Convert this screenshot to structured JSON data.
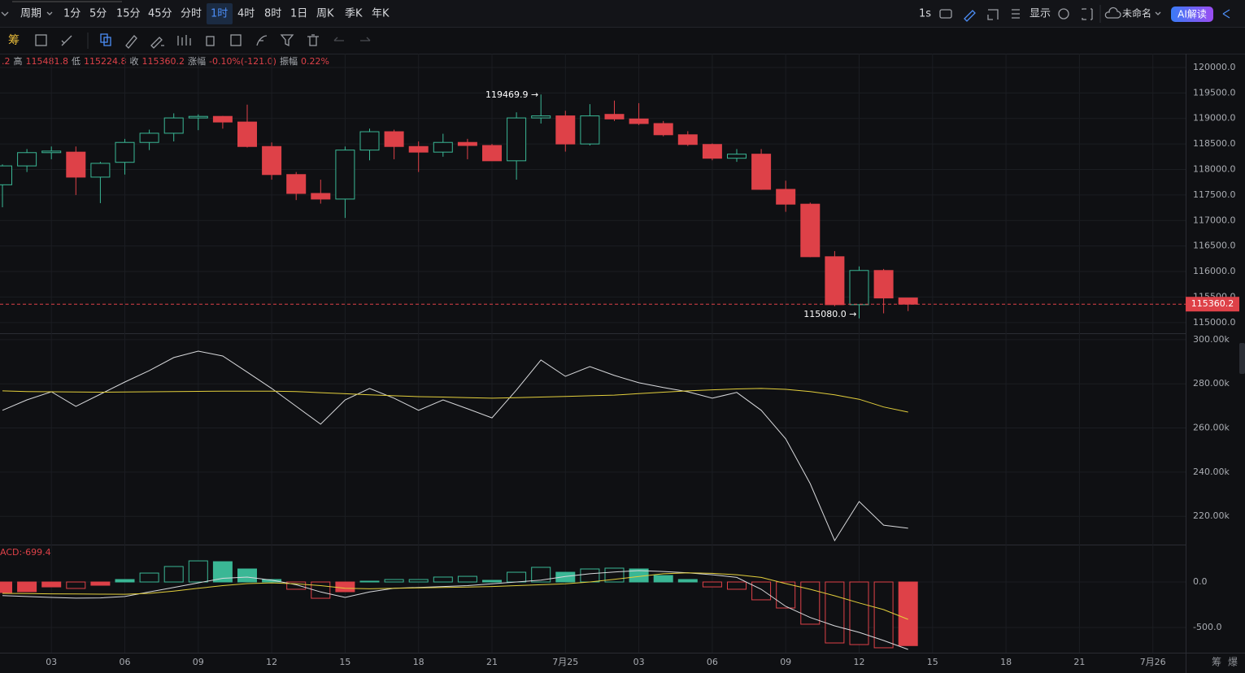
{
  "toolbar": {
    "period_menu": "周期",
    "periods": [
      "1分",
      "5分",
      "15分",
      "45分",
      "分时",
      "1时",
      "4时",
      "8时",
      "1日",
      "周K",
      "季K",
      "年K"
    ],
    "active_period": 5,
    "interval": "1s",
    "display": "显示",
    "layout_name": "未命名",
    "ai": "AI解读",
    "chip_tool": "筹"
  },
  "info_bar": {
    "open_fragment": ".2",
    "high_label": "高",
    "low_label": "低",
    "close_label": "收",
    "change_label": "涨幅",
    "change": "-0.10%(-121.0)",
    "amplitude_label": "振幅",
    "amplitude": "0.22%"
  },
  "footer": [
    "筹",
    "爆"
  ],
  "chart_data": [
    {
      "type": "candlestick",
      "categories": [
        null,
        null,
        "03",
        null,
        null,
        "06",
        null,
        null,
        "09",
        null,
        null,
        "12",
        null,
        null,
        "15",
        null,
        null,
        "18",
        null,
        null,
        "21",
        null,
        null,
        "7月25",
        null,
        null,
        "03",
        null,
        null,
        "06",
        null,
        null,
        "09",
        null,
        null,
        "12",
        null,
        null,
        "15",
        null,
        null,
        "18",
        null,
        null,
        "21",
        null,
        null,
        "7月26"
      ],
      "open": [
        117700,
        118070,
        118330,
        118340,
        117850,
        118140,
        118530,
        118710,
        119010,
        119040,
        118930,
        118450,
        117900,
        117530,
        117420,
        118380,
        118740,
        118450,
        118340,
        118530,
        118470,
        118170,
        119010,
        119050,
        118500,
        119080,
        118990,
        118900,
        118680,
        118490,
        118220,
        118300,
        117610,
        117320,
        116290,
        115350,
        116020,
        115481.2,
        null,
        null,
        null,
        null,
        null,
        null,
        null,
        null,
        null,
        null
      ],
      "high": [
        118100,
        118400,
        118450,
        118450,
        118150,
        118600,
        118780,
        119100,
        119080,
        119050,
        119270,
        118530,
        117950,
        117800,
        118450,
        118800,
        118780,
        118550,
        118700,
        118600,
        118500,
        119120,
        119469.9,
        119150,
        119280,
        119350,
        119300,
        118950,
        118750,
        118510,
        118400,
        118400,
        117780,
        117350,
        116400,
        116100,
        116050,
        115481.8,
        null,
        null,
        null,
        null,
        null,
        null,
        null,
        null,
        null,
        null
      ],
      "low": [
        117260,
        117950,
        118200,
        117500,
        117340,
        117900,
        118380,
        118550,
        118770,
        118800,
        118430,
        117800,
        117400,
        117330,
        117050,
        118180,
        118200,
        117950,
        118250,
        118200,
        118170,
        117800,
        118900,
        118350,
        118470,
        118950,
        118870,
        118650,
        118460,
        118180,
        118150,
        117600,
        117170,
        116280,
        115320,
        115080.0,
        115180,
        115224.8,
        null,
        null,
        null,
        null,
        null,
        null,
        null,
        null,
        null,
        null
      ],
      "close": [
        118070,
        118330,
        118360,
        117850,
        118120,
        118530,
        118710,
        119010,
        119040,
        118930,
        118450,
        117900,
        117530,
        117420,
        118380,
        118740,
        118450,
        118340,
        118530,
        118470,
        118170,
        119010,
        119050,
        118500,
        119050,
        118990,
        118900,
        118680,
        118490,
        118220,
        118300,
        117610,
        117320,
        116290,
        115350,
        116020,
        115481.2,
        115360.2,
        null,
        null,
        null,
        null,
        null,
        null,
        null,
        null,
        null,
        null
      ],
      "up_color": "#3ab795",
      "down_color": "#de4148",
      "high_label": "119469.9 →",
      "low_label": "115080.0 →",
      "ylim": [
        114790,
        120270
      ],
      "yticks": [
        {
          "value": 115000,
          "label": "115000.0"
        },
        {
          "value": 115500,
          "label": "115500.0"
        },
        {
          "value": 116000,
          "label": "116000.0"
        },
        {
          "value": 116500,
          "label": "116500.0"
        },
        {
          "value": 117000,
          "label": "117000.0"
        },
        {
          "value": 117500,
          "label": "117500.0"
        },
        {
          "value": 118000,
          "label": "118000.0"
        },
        {
          "value": 118500,
          "label": "118500.0"
        },
        {
          "value": 119000,
          "label": "119000.0"
        },
        {
          "value": 119500,
          "label": "119500.0"
        },
        {
          "value": 120000,
          "label": "120000.0"
        }
      ]
    },
    {
      "type": "line",
      "series": [
        {
          "color": "#d8d9dc",
          "values": [
            268000,
            272700,
            276400,
            269800,
            275300,
            280800,
            286000,
            291900,
            294800,
            292600,
            285300,
            277900,
            269800,
            261700,
            272700,
            277900,
            273500,
            268000,
            272700,
            268700,
            264600,
            277200,
            290800,
            283400,
            287800,
            283800,
            280500,
            278300,
            276400,
            273500,
            276100,
            268000,
            255100,
            234800,
            209000,
            226700,
            216000,
            214600,
            null,
            null,
            null,
            null,
            null,
            null,
            null,
            null,
            null,
            null
          ]
        },
        {
          "color": "#e3cf3c",
          "values": [
            276800,
            276500,
            276400,
            276300,
            276200,
            276300,
            276400,
            276500,
            276600,
            276700,
            276700,
            276700,
            276500,
            276000,
            275500,
            275000,
            274600,
            274200,
            274000,
            273700,
            273500,
            273700,
            274000,
            274300,
            274600,
            274900,
            275600,
            276200,
            276800,
            277300,
            277700,
            277900,
            277500,
            276500,
            275000,
            273000,
            269500,
            267200,
            null,
            null,
            null,
            null,
            null,
            null,
            null,
            null,
            null,
            null
          ]
        }
      ],
      "ylim": [
        207200,
        302900
      ],
      "yticks": [
        {
          "value": 220000,
          "label": "220.00k"
        },
        {
          "value": 240000,
          "label": "240.00k"
        },
        {
          "value": 260000,
          "label": "260.00k"
        },
        {
          "value": 280000,
          "label": "280.00k"
        },
        {
          "value": 300000,
          "label": "300.00k"
        }
      ]
    },
    {
      "type": "macd",
      "label": "ACD:-699.4",
      "histogram": {
        "up_color": "#3ab795",
        "down_color": "#de4148",
        "values": [
          -116,
          -107,
          -54,
          -71,
          -36,
          27,
          98,
          170,
          232,
          223,
          143,
          27,
          -80,
          -179,
          -107,
          9,
          27,
          27,
          54,
          62,
          18,
          107,
          161,
          107,
          143,
          152,
          143,
          71,
          27,
          -54,
          -80,
          -196,
          -286,
          -464,
          -670,
          -688,
          -723,
          -699.4,
          null,
          null,
          null,
          null,
          null,
          null,
          null,
          null,
          null,
          null
        ]
      },
      "series": [
        {
          "color": "#d8d9dc",
          "values": [
            -150,
            -160,
            -170,
            -178,
            -175,
            -160,
            -110,
            -60,
            -10,
            40,
            54,
            20,
            -30,
            -110,
            -170,
            -110,
            -70,
            -60,
            -50,
            -40,
            -20,
            0,
            20,
            60,
            90,
            110,
            125,
            115,
            100,
            80,
            50,
            -80,
            -268,
            -390,
            -482,
            -554,
            -643,
            -741,
            null,
            null,
            null,
            null,
            null,
            null,
            null,
            null,
            null,
            null
          ]
        },
        {
          "color": "#e3cf3c",
          "values": [
            -125,
            -128,
            -130,
            -132,
            -134,
            -135,
            -125,
            -100,
            -70,
            -40,
            -18,
            -10,
            -20,
            -40,
            -70,
            -75,
            -70,
            -65,
            -60,
            -55,
            -50,
            -40,
            -30,
            -20,
            0,
            30,
            60,
            90,
            100,
            95,
            80,
            50,
            -18,
            -80,
            -152,
            -230,
            -304,
            -411,
            null,
            null,
            null,
            null,
            null,
            null,
            null,
            null,
            null,
            null
          ]
        }
      ],
      "ylim": [
        -777,
        411
      ],
      "yticks": [
        {
          "value": -500,
          "label": "-500.0"
        },
        {
          "value": 0,
          "label": "0.0"
        }
      ]
    }
  ]
}
